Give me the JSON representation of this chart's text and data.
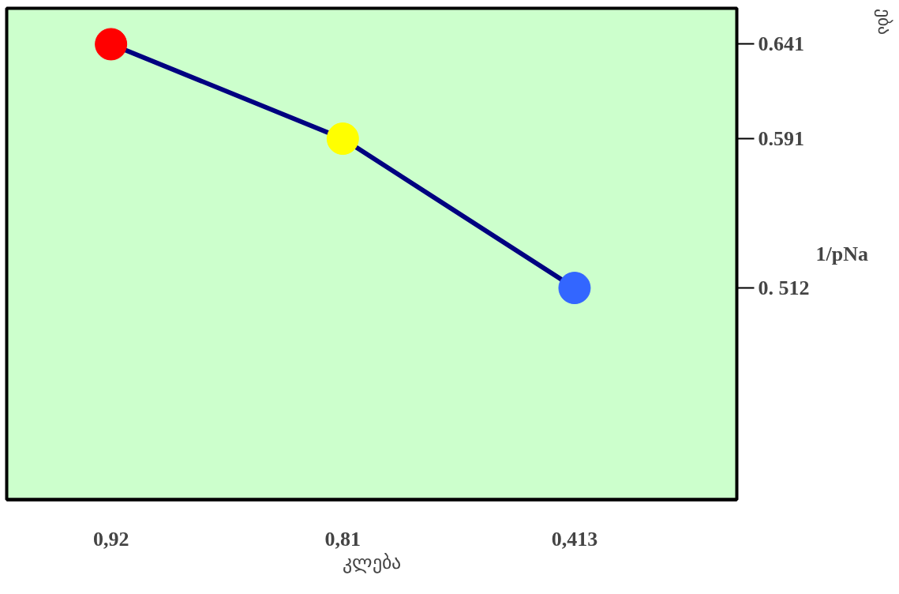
{
  "chart_data": {
    "type": "line",
    "categories": [
      "0,92",
      "0,81",
      "0,413"
    ],
    "series": [
      {
        "color": "#000080",
        "colors": [
          "#ff0000",
          "#ffff00",
          "#3366ff"
        ],
        "values": [
          0.641,
          0.591,
          0.512
        ]
      }
    ],
    "marker": "circle",
    "line_style": "solid",
    "grid": false,
    "xlabel": "კლება",
    "ylabel": "1/pNa",
    "annotations": [
      "ება"
    ],
    "ylim": [
      0.4,
      0.66
    ],
    "yticks": [
      {
        "value": 0.641,
        "label": "0.641"
      },
      {
        "value": 0.591,
        "label": "0.591"
      },
      {
        "value": 0.512,
        "label": "0. 512"
      }
    ]
  }
}
